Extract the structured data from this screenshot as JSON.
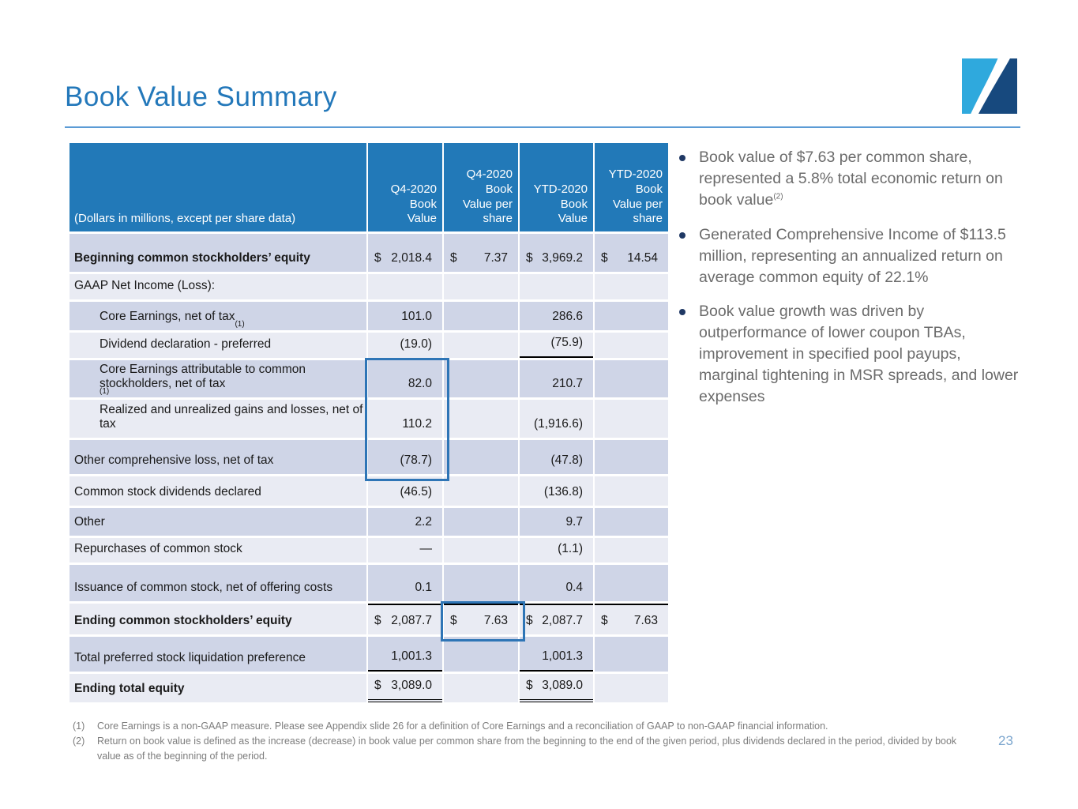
{
  "title": "Book Value Summary",
  "page_number": "23",
  "colors": {
    "title_color": "#2378BA",
    "divider_color": "#5B9BD5",
    "header_bg": "#2279B8",
    "row_dark": "#CFD5E7",
    "row_light": "#E9EBF3",
    "highlight_border": "#2E75B6",
    "bullet_marker": "#1F3864",
    "bullet_text": "#6B6B6B",
    "footnote_color": "#7D7D7D",
    "page_number_color": "#7CA6CE",
    "logo_light": "#2FA9DD",
    "logo_dark": "#17497E"
  },
  "table": {
    "header": {
      "label": "(Dollars in millions, except per share data)",
      "columns": [
        "Q4-2020\nBook\nValue",
        "Q4-2020\nBook\nValue per\nshare",
        "YTD-2020\nBook\nValue",
        "YTD-2020\nBook\nValue per\nshare"
      ]
    },
    "rows": [
      {
        "label": "Beginning common stockholders’ equity",
        "cells": [
          {
            "d": "$",
            "v": "2,018.4"
          },
          {
            "d": "$",
            "v": "7.37"
          },
          {
            "d": "$",
            "v": "3,969.2"
          },
          {
            "d": "$",
            "v": "14.54"
          }
        ]
      },
      {
        "label": "GAAP Net Income (Loss):",
        "cells": [
          "",
          "",
          "",
          ""
        ]
      },
      {
        "label": "Core Earnings, net of tax",
        "sup": "(1)",
        "cells": [
          "101.0",
          "",
          "286.6",
          ""
        ]
      },
      {
        "label": "Dividend declaration - preferred",
        "cells": [
          "(19.0)",
          "",
          "(75.9)",
          ""
        ]
      },
      {
        "label": "Core Earnings attributable to common stockholders, net of tax",
        "sup": "(1)",
        "cells": [
          "82.0",
          "",
          "210.7",
          ""
        ]
      },
      {
        "label": "Realized and unrealized gains and losses, net of tax",
        "cells": [
          "110.2",
          "",
          "(1,916.6)",
          ""
        ]
      },
      {
        "label": "Other comprehensive loss, net of tax",
        "cells": [
          "(78.7)",
          "",
          "(47.8)",
          ""
        ]
      },
      {
        "label": "Common stock dividends declared",
        "cells": [
          "(46.5)",
          "",
          "(136.8)",
          ""
        ]
      },
      {
        "label": "Other",
        "cells": [
          "2.2",
          "",
          "9.7",
          ""
        ]
      },
      {
        "label": "Repurchases of common stock",
        "cells": [
          "—",
          "",
          "(1.1)",
          ""
        ]
      },
      {
        "label": "Issuance of common stock, net of offering costs",
        "cells": [
          "0.1",
          "",
          "0.4",
          ""
        ]
      },
      {
        "label": "Ending common stockholders’ equity",
        "cells": [
          {
            "d": "$",
            "v": "2,087.7"
          },
          {
            "d": "$",
            "v": "7.63"
          },
          {
            "d": "$",
            "v": "2,087.7"
          },
          {
            "d": "$",
            "v": "7.63"
          }
        ]
      },
      {
        "label": "Total preferred stock liquidation preference",
        "cells": [
          "1,001.3",
          "",
          "1,001.3",
          ""
        ]
      },
      {
        "label": "Ending total equity",
        "cells": [
          {
            "d": "$",
            "v": "3,089.0"
          },
          "",
          {
            "d": "$",
            "v": "3,089.0"
          },
          ""
        ]
      }
    ]
  },
  "bullets": [
    {
      "text": "Book value of $7.63 per common share, represented a 5.8% total economic return on book value",
      "sup": "(2)"
    },
    {
      "text": "Generated Comprehensive Income of $113.5 million, representing an annualized return on average common equity of 22.1%"
    },
    {
      "text": "Book value growth was driven by outperformance of lower coupon TBAs, improvement in specified pool payups, marginal tightening in MSR spreads, and lower expenses"
    }
  ],
  "footnotes": [
    {
      "num": "(1)",
      "text": "Core Earnings is a non-GAAP measure. Please see Appendix slide 26 for a definition of Core Earnings and a reconciliation of GAAP to non-GAAP financial information."
    },
    {
      "num": "(2)",
      "text": "Return on book value is defined as the increase (decrease) in book value per common share from the beginning to the end of the given period, plus dividends declared in the period, divided by book value as of the beginning of the period."
    }
  ]
}
